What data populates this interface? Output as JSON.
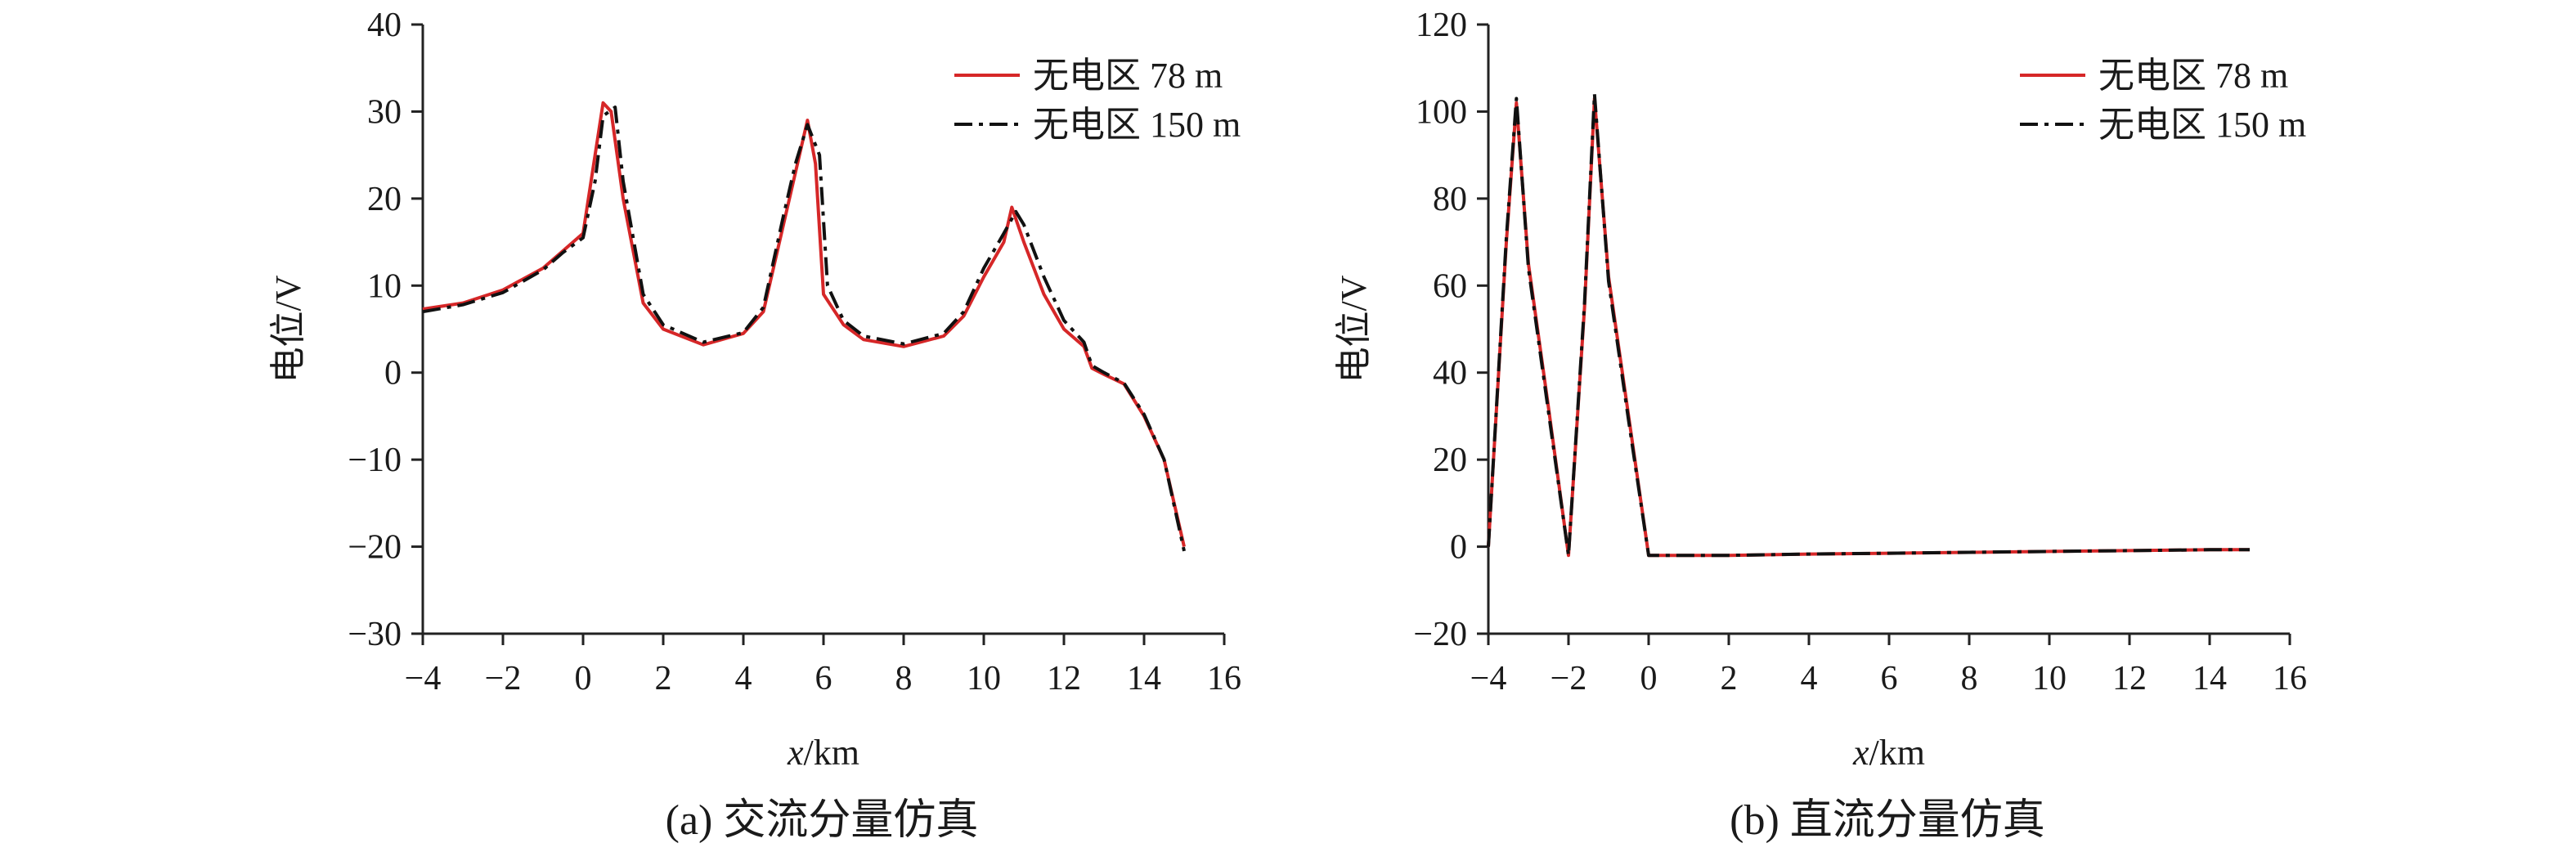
{
  "chart_data": [
    {
      "type": "line",
      "caption": "(a) 交流分量仿真",
      "xlabel_var": "x",
      "xlabel_unit": "/km",
      "ylabel": "电位/V",
      "xlim": [
        -4,
        16
      ],
      "ylim": [
        -30,
        40
      ],
      "xticks": [
        -4,
        -2,
        0,
        2,
        4,
        6,
        8,
        10,
        12,
        14,
        16
      ],
      "xtick_labels": [
        "−4",
        "−2",
        "0",
        "2",
        "4",
        "6",
        "8",
        "10",
        "12",
        "14",
        "16"
      ],
      "yticks": [
        -30,
        -20,
        -10,
        0,
        10,
        20,
        30,
        40
      ],
      "ytick_labels": [
        "−30",
        "−20",
        "−10",
        "0",
        "10",
        "20",
        "30",
        "40"
      ],
      "legend_position": "top-right",
      "grid": false,
      "series": [
        {
          "name": "无电区 78 m",
          "color": "#d62728",
          "style": "solid",
          "x": [
            -4,
            -3,
            -2,
            -1,
            -0.5,
            0,
            0.3,
            0.5,
            0.7,
            1,
            1.5,
            2,
            3,
            4,
            4.5,
            5,
            5.3,
            5.6,
            5.8,
            6,
            6.5,
            7,
            8,
            9,
            9.5,
            10,
            10.5,
            10.7,
            11,
            11.5,
            12,
            12.5,
            12.7,
            13,
            13.5,
            14,
            14.5,
            15
          ],
          "y": [
            7.3,
            8,
            9.5,
            12,
            14,
            16,
            25,
            31,
            30,
            20,
            8,
            5,
            3.2,
            4.5,
            7,
            17,
            23,
            29,
            24,
            9,
            5.5,
            3.8,
            3,
            4.2,
            6.5,
            11,
            15,
            19,
            15,
            9,
            5,
            3,
            0.5,
            -0.2,
            -1.3,
            -5,
            -10,
            -20
          ]
        },
        {
          "name": "无电区 150 m",
          "color": "#111111",
          "style": "dashdot",
          "x": [
            -4,
            -3,
            -2,
            -1,
            -0.5,
            0,
            0.3,
            0.5,
            0.8,
            1,
            1.5,
            2,
            3,
            4,
            4.5,
            5,
            5.3,
            5.6,
            5.9,
            6.1,
            6.5,
            7,
            8,
            9,
            9.5,
            10,
            10.5,
            10.8,
            11,
            11.5,
            12,
            12.5,
            12.7,
            13,
            13.5,
            14,
            14.5,
            15
          ],
          "y": [
            7,
            7.8,
            9.2,
            11.8,
            13.8,
            15.5,
            22,
            29.5,
            30.5,
            22,
            9,
            5.5,
            3.5,
            4.6,
            7.5,
            18,
            24,
            28.5,
            25,
            10,
            6,
            4.2,
            3.3,
            4.5,
            7,
            12,
            16,
            18.5,
            17,
            11,
            6,
            3.5,
            0.8,
            0,
            -1.2,
            -4.8,
            -10,
            -20.5
          ]
        }
      ]
    },
    {
      "type": "line",
      "caption": "(b) 直流分量仿真",
      "xlabel_var": "x",
      "xlabel_unit": "/km",
      "ylabel": "电位/V",
      "xlim": [
        -4,
        16
      ],
      "ylim": [
        -20,
        120
      ],
      "xticks": [
        -4,
        -2,
        0,
        2,
        4,
        6,
        8,
        10,
        12,
        14,
        16
      ],
      "xtick_labels": [
        "−4",
        "−2",
        "0",
        "2",
        "4",
        "6",
        "8",
        "10",
        "12",
        "14",
        "16"
      ],
      "yticks": [
        -20,
        0,
        20,
        40,
        60,
        80,
        100,
        120
      ],
      "ytick_labels": [
        "−20",
        "0",
        "20",
        "40",
        "60",
        "80",
        "100",
        "120"
      ],
      "legend_position": "top-right",
      "grid": false,
      "series": [
        {
          "name": "无电区 78 m",
          "color": "#d62728",
          "style": "solid",
          "x": [
            -4,
            -3.55,
            -3.3,
            -3,
            -2.5,
            -2,
            -1.6,
            -1.35,
            -1,
            -0.5,
            0,
            2,
            4,
            6,
            8,
            10,
            12,
            14,
            15
          ],
          "y": [
            0,
            70,
            102,
            65,
            32,
            -2,
            55,
            103,
            62,
            30,
            -2,
            -2,
            -1.7,
            -1.5,
            -1.3,
            -1.1,
            -0.9,
            -0.7,
            -0.7
          ]
        },
        {
          "name": "无电区 150 m",
          "color": "#111111",
          "style": "dashdot",
          "x": [
            -4,
            -3.55,
            -3.3,
            -3,
            -2.5,
            -2,
            -1.6,
            -1.35,
            -1,
            -0.5,
            0,
            2,
            4,
            6,
            8,
            10,
            12,
            14,
            15
          ],
          "y": [
            0,
            71,
            103,
            64,
            31,
            -2,
            56,
            104,
            61,
            29,
            -2,
            -2,
            -1.7,
            -1.5,
            -1.3,
            -1.1,
            -0.9,
            -0.7,
            -0.7
          ]
        }
      ]
    }
  ]
}
